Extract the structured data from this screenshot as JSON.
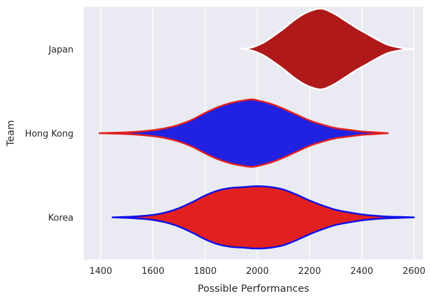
{
  "chart_data": {
    "type": "violin",
    "orientation": "horizontal",
    "title": "",
    "xlabel": "Possible Performances",
    "ylabel": "Team",
    "xlim": [
      1335,
      2635
    ],
    "xticks": [
      1400,
      1600,
      1800,
      2000,
      2200,
      2400,
      2600
    ],
    "grid": true,
    "background_color": "#EAEAF2",
    "grid_color": "#FFFFFF",
    "categories": [
      "Japan",
      "Hong Kong",
      "Korea"
    ],
    "series": [
      {
        "name": "Japan",
        "fill": "#B0191A",
        "edge": "#FFFFFF",
        "x": [
          1940,
          1980,
          2020,
          2060,
          2100,
          2140,
          2180,
          2220,
          2240,
          2260,
          2300,
          2340,
          2380,
          2420,
          2460,
          2500,
          2540,
          2560,
          2600
        ],
        "half_width": [
          0.0,
          0.02,
          0.07,
          0.15,
          0.24,
          0.34,
          0.42,
          0.47,
          0.48,
          0.47,
          0.41,
          0.33,
          0.25,
          0.18,
          0.11,
          0.05,
          0.02,
          0.01,
          0.0
        ]
      },
      {
        "name": "Hong Kong",
        "fill": "#2121E2",
        "edge": "#E22020",
        "x": [
          1395,
          1450,
          1500,
          1550,
          1600,
          1650,
          1700,
          1750,
          1800,
          1850,
          1900,
          1950,
          1980,
          2000,
          2050,
          2100,
          2150,
          2200,
          2250,
          2300,
          2350,
          2400,
          2450,
          2500
        ],
        "half_width": [
          0.0,
          0.005,
          0.01,
          0.02,
          0.035,
          0.06,
          0.1,
          0.16,
          0.24,
          0.31,
          0.36,
          0.39,
          0.4,
          0.39,
          0.35,
          0.29,
          0.22,
          0.15,
          0.1,
          0.06,
          0.04,
          0.02,
          0.01,
          0.0
        ]
      },
      {
        "name": "Korea",
        "fill": "#E22020",
        "edge": "#1010E8",
        "x": [
          1445,
          1500,
          1550,
          1600,
          1650,
          1700,
          1750,
          1800,
          1850,
          1900,
          1950,
          2000,
          2050,
          2100,
          2150,
          2200,
          2250,
          2300,
          2350,
          2400,
          2450,
          2500,
          2550,
          2600
        ],
        "half_width": [
          0.0,
          0.006,
          0.015,
          0.03,
          0.06,
          0.11,
          0.18,
          0.26,
          0.32,
          0.35,
          0.36,
          0.37,
          0.36,
          0.33,
          0.27,
          0.2,
          0.14,
          0.09,
          0.06,
          0.035,
          0.02,
          0.01,
          0.005,
          0.0
        ]
      }
    ]
  }
}
